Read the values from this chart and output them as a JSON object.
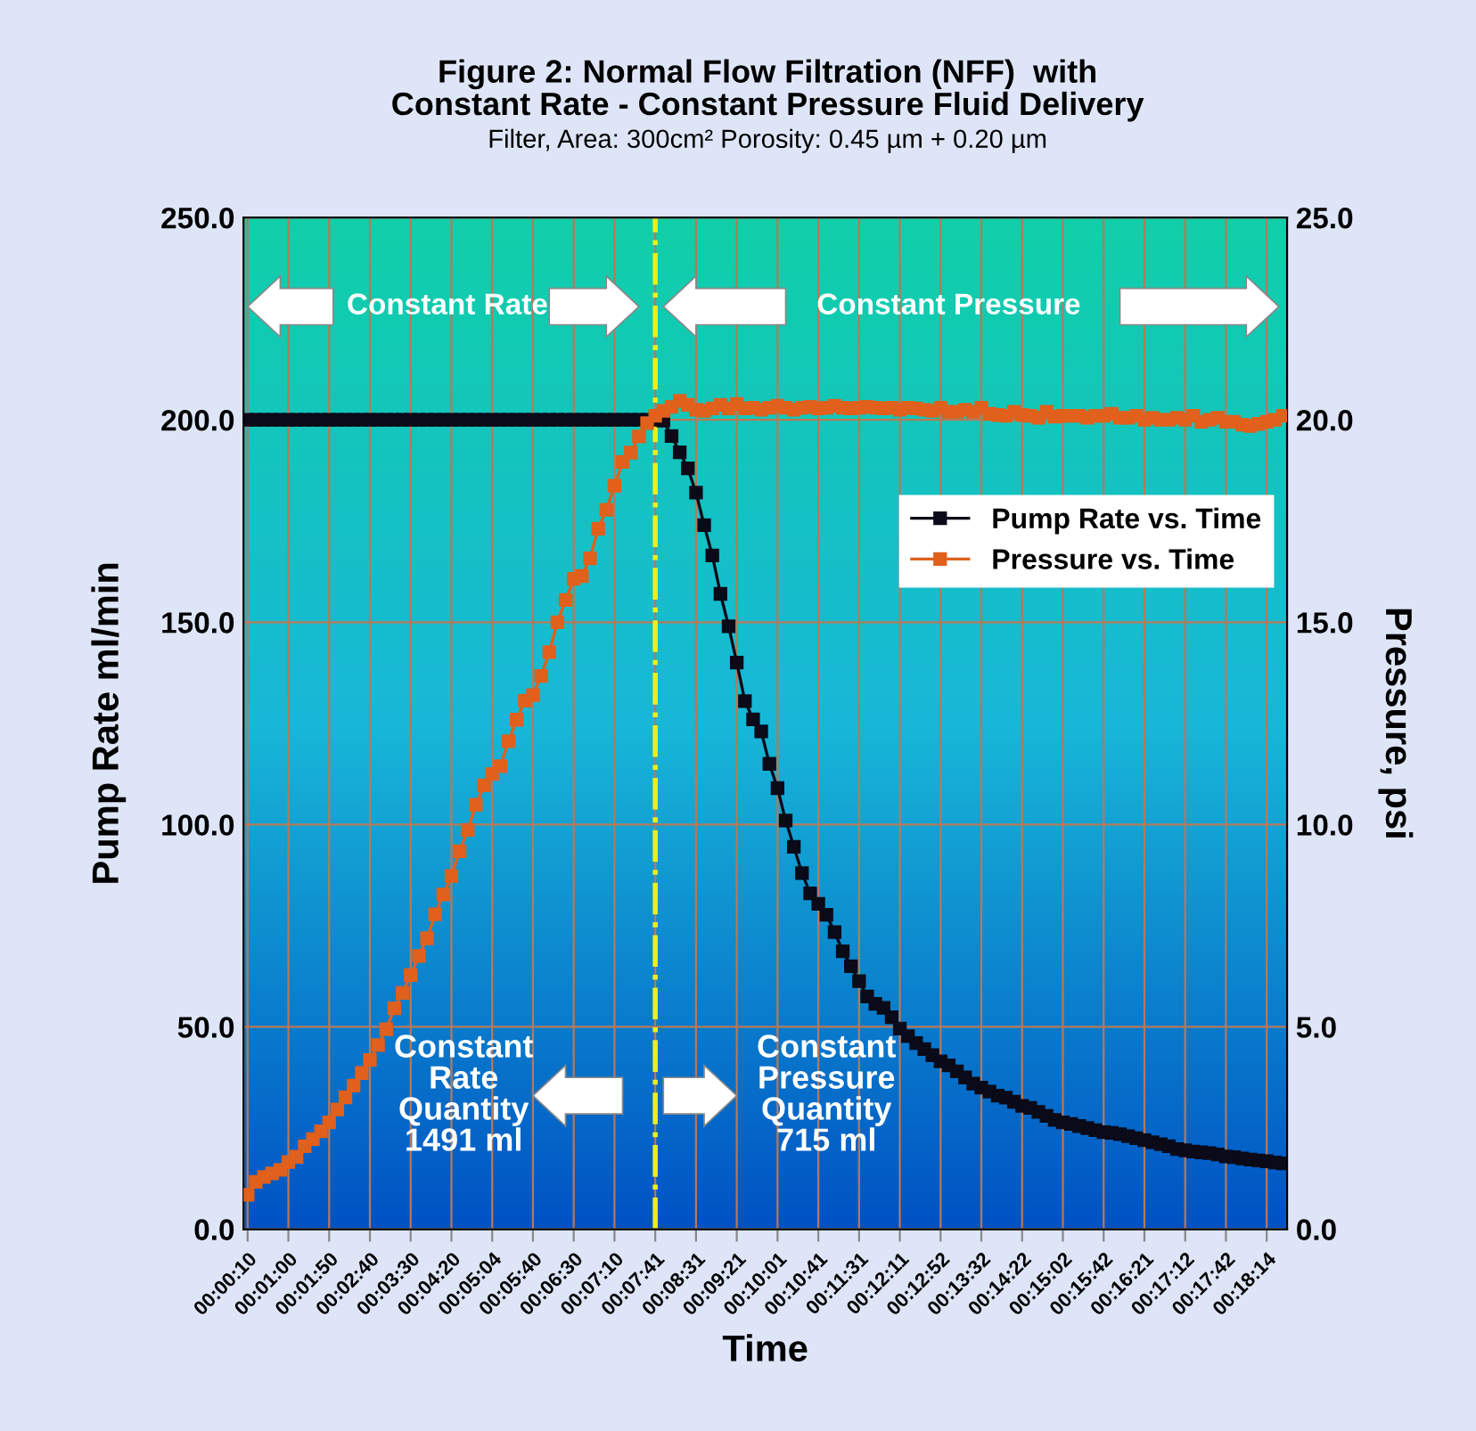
{
  "chart_data": {
    "type": "line",
    "title": "Figure 2: Normal Flow Filtration (NFF)  with\nConstant Rate - Constant Pressure Fluid Delivery",
    "subtitle": "Filter, Area: 300cm² Porosity: 0.45 µm + 0.20 µm",
    "xlabel": "Time",
    "ylabel": "Pump Rate ml/min",
    "y2label": "Pressure, psi",
    "categories": [
      "00:00:10",
      null,
      null,
      null,
      null,
      "00:01:00",
      null,
      null,
      null,
      null,
      "00:01:50",
      null,
      null,
      null,
      null,
      "00:02:40",
      null,
      null,
      null,
      null,
      "00:03:30",
      null,
      null,
      null,
      null,
      "00:04:20",
      null,
      null,
      null,
      null,
      "00:05:04",
      null,
      null,
      null,
      null,
      "00:05:40",
      null,
      null,
      null,
      null,
      "00:06:30",
      null,
      null,
      null,
      null,
      "00:07:10",
      null,
      null,
      null,
      null,
      "00:07:41",
      null,
      null,
      null,
      null,
      "00:08:31",
      null,
      null,
      null,
      null,
      "00:09:21",
      null,
      null,
      null,
      null,
      "00:10:01",
      null,
      null,
      null,
      null,
      "00:10:41",
      null,
      null,
      null,
      null,
      "00:11:31",
      null,
      null,
      null,
      null,
      "00:12:11",
      null,
      null,
      null,
      null,
      "00:12:52",
      null,
      null,
      null,
      null,
      "00:13:32",
      null,
      null,
      null,
      null,
      "00:14:22",
      null,
      null,
      null,
      null,
      "00:15:02",
      null,
      null,
      null,
      null,
      "00:15:42",
      null,
      null,
      null,
      null,
      "00:16:21",
      null,
      null,
      null,
      null,
      "00:17:12",
      null,
      null,
      null,
      null,
      "00:17:42",
      null,
      null,
      null,
      null,
      "00:18:14",
      null,
      null
    ],
    "series": [
      {
        "name": "Pump Rate vs. Time",
        "color": "#0a0a18",
        "values": [
          200,
          200,
          200,
          200,
          200,
          200,
          200,
          200,
          200,
          200,
          200,
          200,
          200,
          200,
          200,
          200,
          200,
          200,
          200,
          200,
          200,
          200,
          200,
          200,
          200,
          200,
          200,
          200,
          200,
          200,
          200,
          200,
          200,
          200,
          200,
          200,
          200,
          200,
          200,
          200,
          200,
          200,
          200,
          200,
          200,
          200,
          200,
          200,
          200,
          200,
          200,
          199.8,
          196,
          192,
          188,
          182,
          174,
          166.5,
          157,
          149,
          140,
          130.5,
          126,
          123,
          115,
          109,
          101,
          94.5,
          88,
          83,
          80.4,
          77.7,
          73.4,
          68.7,
          65,
          61.3,
          57.5,
          55.7,
          54.7,
          52.4,
          49.6,
          47.7,
          46,
          44.5,
          43,
          41.5,
          40.5,
          39,
          37.5,
          36,
          35,
          34,
          33,
          32.5,
          31.5,
          30.5,
          30,
          29,
          28,
          27,
          26.4,
          26,
          25.5,
          25,
          24.5,
          24,
          23.8,
          23.5,
          23,
          22.5,
          22,
          21.5,
          21,
          20.5,
          19.8,
          19.5,
          19.2,
          19,
          18.8,
          18.5,
          18,
          17.8,
          17.5,
          17.2,
          17,
          16.8,
          16.5,
          16.3
        ]
      },
      {
        "name": "Pressure vs. Time",
        "color": "#e0601c",
        "axis": "y2",
        "values": [
          0.85,
          1.17,
          1.29,
          1.38,
          1.47,
          1.66,
          1.79,
          2.05,
          2.23,
          2.42,
          2.64,
          2.96,
          3.26,
          3.55,
          3.86,
          4.18,
          4.55,
          4.94,
          5.46,
          5.84,
          6.28,
          6.75,
          7.19,
          7.78,
          8.27,
          8.73,
          9.34,
          9.87,
          10.49,
          10.97,
          11.25,
          11.44,
          12.06,
          12.59,
          13.06,
          13.2,
          13.67,
          14.26,
          15.0,
          15.55,
          16.07,
          16.14,
          16.58,
          17.31,
          17.78,
          18.37,
          18.96,
          19.19,
          19.59,
          19.92,
          20.1,
          20.22,
          20.32,
          20.47,
          20.37,
          20.25,
          20.22,
          20.28,
          20.37,
          20.28,
          20.39,
          20.28,
          20.3,
          20.25,
          20.3,
          20.35,
          20.3,
          20.25,
          20.3,
          20.32,
          20.28,
          20.3,
          20.35,
          20.3,
          20.28,
          20.3,
          20.32,
          20.3,
          20.28,
          20.3,
          20.25,
          20.3,
          20.28,
          20.25,
          20.22,
          20.3,
          20.2,
          20.2,
          20.25,
          20.2,
          20.3,
          20.15,
          20.12,
          20.1,
          20.2,
          20.12,
          20.1,
          20.05,
          20.2,
          20.08,
          20.1,
          20.1,
          20.1,
          20.05,
          20.1,
          20.1,
          20.15,
          20.05,
          20.05,
          20.1,
          20.0,
          20.05,
          20.0,
          20.0,
          20.05,
          20.0,
          20.1,
          19.95,
          20.0,
          20.05,
          19.95,
          19.95,
          19.88,
          19.85,
          19.9,
          19.95,
          20.0,
          20.1
        ]
      }
    ],
    "ylim": [
      0,
      250
    ],
    "yticks": [
      {
        "value": 0,
        "label": "0.0"
      },
      {
        "value": 50,
        "label": "50.0"
      },
      {
        "value": 100,
        "label": "100.0"
      },
      {
        "value": 150,
        "label": "150.0"
      },
      {
        "value": 200,
        "label": "200.0"
      },
      {
        "value": 250,
        "label": "250.0"
      }
    ],
    "y2lim": [
      0,
      25
    ],
    "y2ticks": [
      {
        "value": 0,
        "label": "0.0"
      },
      {
        "value": 5,
        "label": "5.0"
      },
      {
        "value": 10,
        "label": "10.0"
      },
      {
        "value": 15,
        "label": "15.0"
      },
      {
        "value": 20,
        "label": "20.0"
      },
      {
        "value": 25,
        "label": "25.0"
      }
    ],
    "ref_lines": [
      {
        "axis": "x",
        "value": "00:07:41",
        "color": "#e8f020",
        "line_style": "dashdot"
      }
    ],
    "annotations": [
      "Constant Rate",
      "Constant Pressure",
      "Constant\nRate\nQuantity\n1491 ml",
      "Constant\nPressure\nQuantity\n715 ml"
    ],
    "grid": true,
    "legend": "right",
    "marker": "square",
    "line_style": "solid"
  }
}
